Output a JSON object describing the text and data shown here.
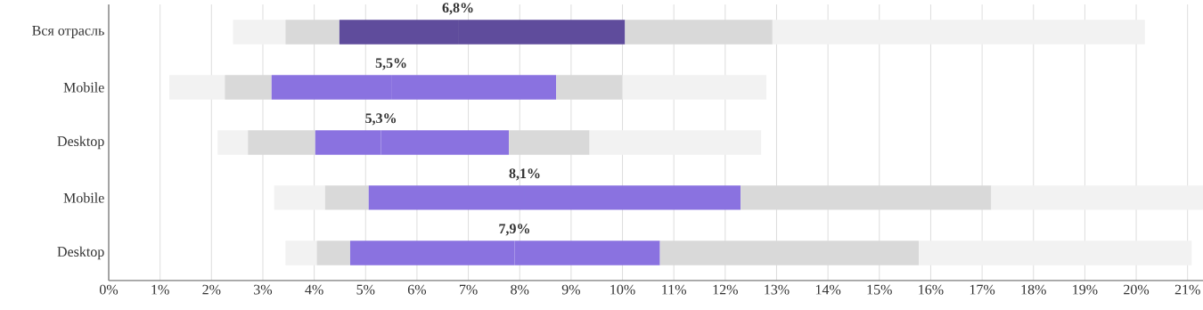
{
  "chart_data": {
    "type": "bar",
    "orientation": "horizontal",
    "grid": "x",
    "categories": [
      "Вся отрасль",
      "Mobile",
      "Desktop",
      "Mobile",
      "Desktop"
    ],
    "series": [
      {
        "color": "#f2f2f2",
        "base": [
          2.42,
          1.18,
          2.12,
          3.22,
          3.44
        ],
        "values": [
          1.02,
          1.08,
          0.59,
          0.99,
          0.61
        ]
      },
      {
        "color": "#d9d9d9",
        "base": [
          3.44,
          2.26,
          2.71,
          4.21,
          4.05
        ],
        "values": [
          1.05,
          0.91,
          1.31,
          0.85,
          0.65
        ]
      },
      {
        "colors": [
          "#5f4c9c",
          "#8a72e0",
          "#8a72e0",
          "#8a72e0",
          "#8a72e0"
        ],
        "base": [
          4.49,
          3.17,
          4.02,
          5.06,
          4.7
        ],
        "values": [
          2.31,
          2.33,
          1.28,
          3.04,
          3.2
        ]
      },
      {
        "colors": [
          "#5f4c9c",
          "#8a72e0",
          "#8a72e0",
          "#8a72e0",
          "#8a72e0"
        ],
        "base": [
          6.8,
          5.5,
          5.3,
          8.1,
          7.9
        ],
        "values": [
          3.25,
          3.21,
          2.49,
          4.2,
          2.83
        ]
      },
      {
        "color": "#d9d9d9",
        "base": [
          10.05,
          8.71,
          7.79,
          12.3,
          10.73
        ],
        "values": [
          2.87,
          1.29,
          1.57,
          4.88,
          5.04
        ]
      },
      {
        "color": "#f2f2f2",
        "base": [
          12.92,
          10.0,
          9.36,
          17.18,
          15.77
        ],
        "values": [
          7.25,
          2.8,
          3.34,
          4.12,
          5.31
        ]
      }
    ],
    "annotations": [
      {
        "text": "6,8%",
        "x": 6.8,
        "y": "Вся отрасль"
      },
      {
        "text": "5,5%",
        "x": 5.5,
        "y": "Mobile"
      },
      {
        "text": "5,3%",
        "x": 5.3,
        "y": "Desktop"
      },
      "8,1%",
      "7,9%"
    ],
    "xlim": [
      0,
      21.3
    ],
    "xticks": [
      {
        "value": 0,
        "label": "0%"
      },
      {
        "value": 1,
        "label": "1%"
      },
      {
        "value": 2,
        "label": "2%"
      },
      {
        "value": 3,
        "label": "3%"
      },
      {
        "value": 4,
        "label": "4%"
      },
      {
        "value": 5,
        "label": "5%"
      },
      {
        "value": 6,
        "label": "6%"
      },
      {
        "value": 7,
        "label": "7%"
      },
      {
        "value": 8,
        "label": "8%"
      },
      {
        "value": 9,
        "label": "9%"
      },
      {
        "value": 10,
        "label": "10%"
      },
      {
        "value": 11,
        "label": "11%"
      },
      {
        "value": 12,
        "label": "12%"
      },
      {
        "value": 13,
        "label": "13%"
      },
      {
        "value": 14,
        "label": "14%"
      },
      {
        "value": 15,
        "label": "15%"
      },
      {
        "value": 16,
        "label": "16%"
      },
      {
        "value": 17,
        "label": "17%"
      },
      {
        "value": 18,
        "label": "18%"
      },
      {
        "value": 19,
        "label": "19%"
      },
      {
        "value": 20,
        "label": "20%"
      },
      {
        "value": 21,
        "label": "21%"
      }
    ]
  }
}
